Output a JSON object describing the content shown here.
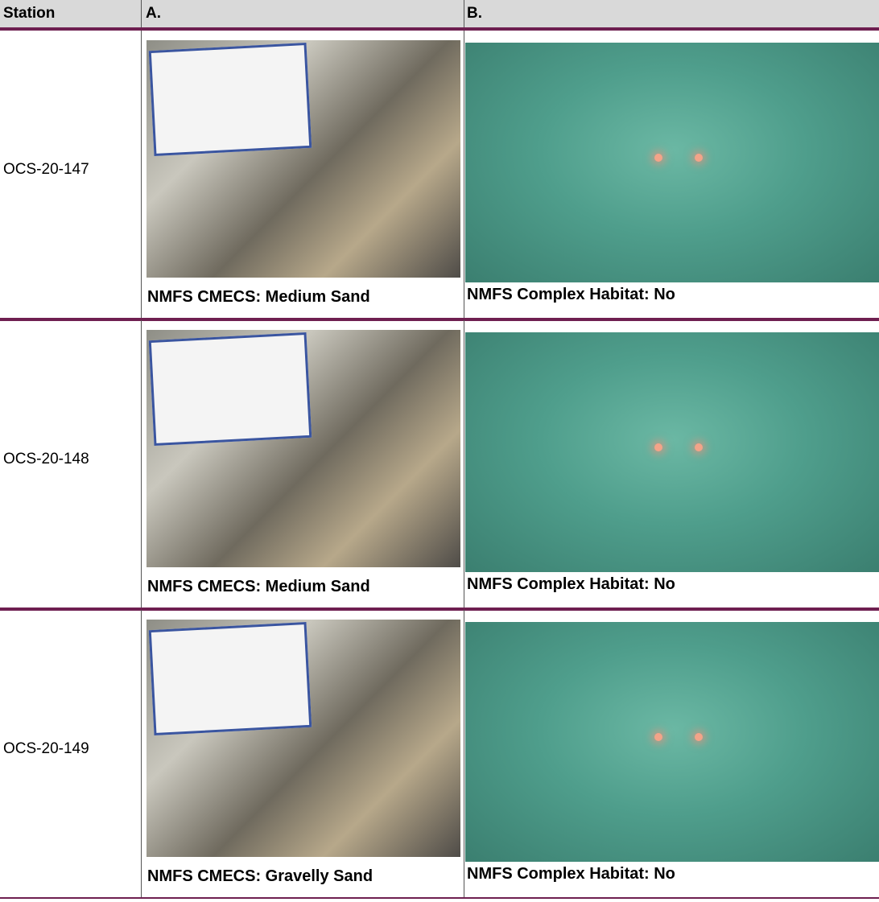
{
  "table": {
    "header": [
      "Station",
      "A.",
      "B."
    ],
    "rows": [
      {
        "station": "OCS-20-147",
        "caption_a": "NMFS CMECS:  Medium Sand",
        "caption_b": "NMFS Complex Habitat:  No"
      },
      {
        "station": "OCS-20-148",
        "caption_a": "NMFS CMECS:  Medium Sand",
        "caption_b": "NMFS Complex Habitat:  No"
      },
      {
        "station": "OCS-20-149",
        "caption_a": "NMFS CMECS:  Gravelly Sand",
        "caption_b": "NMFS Complex Habitat:  No"
      }
    ]
  }
}
